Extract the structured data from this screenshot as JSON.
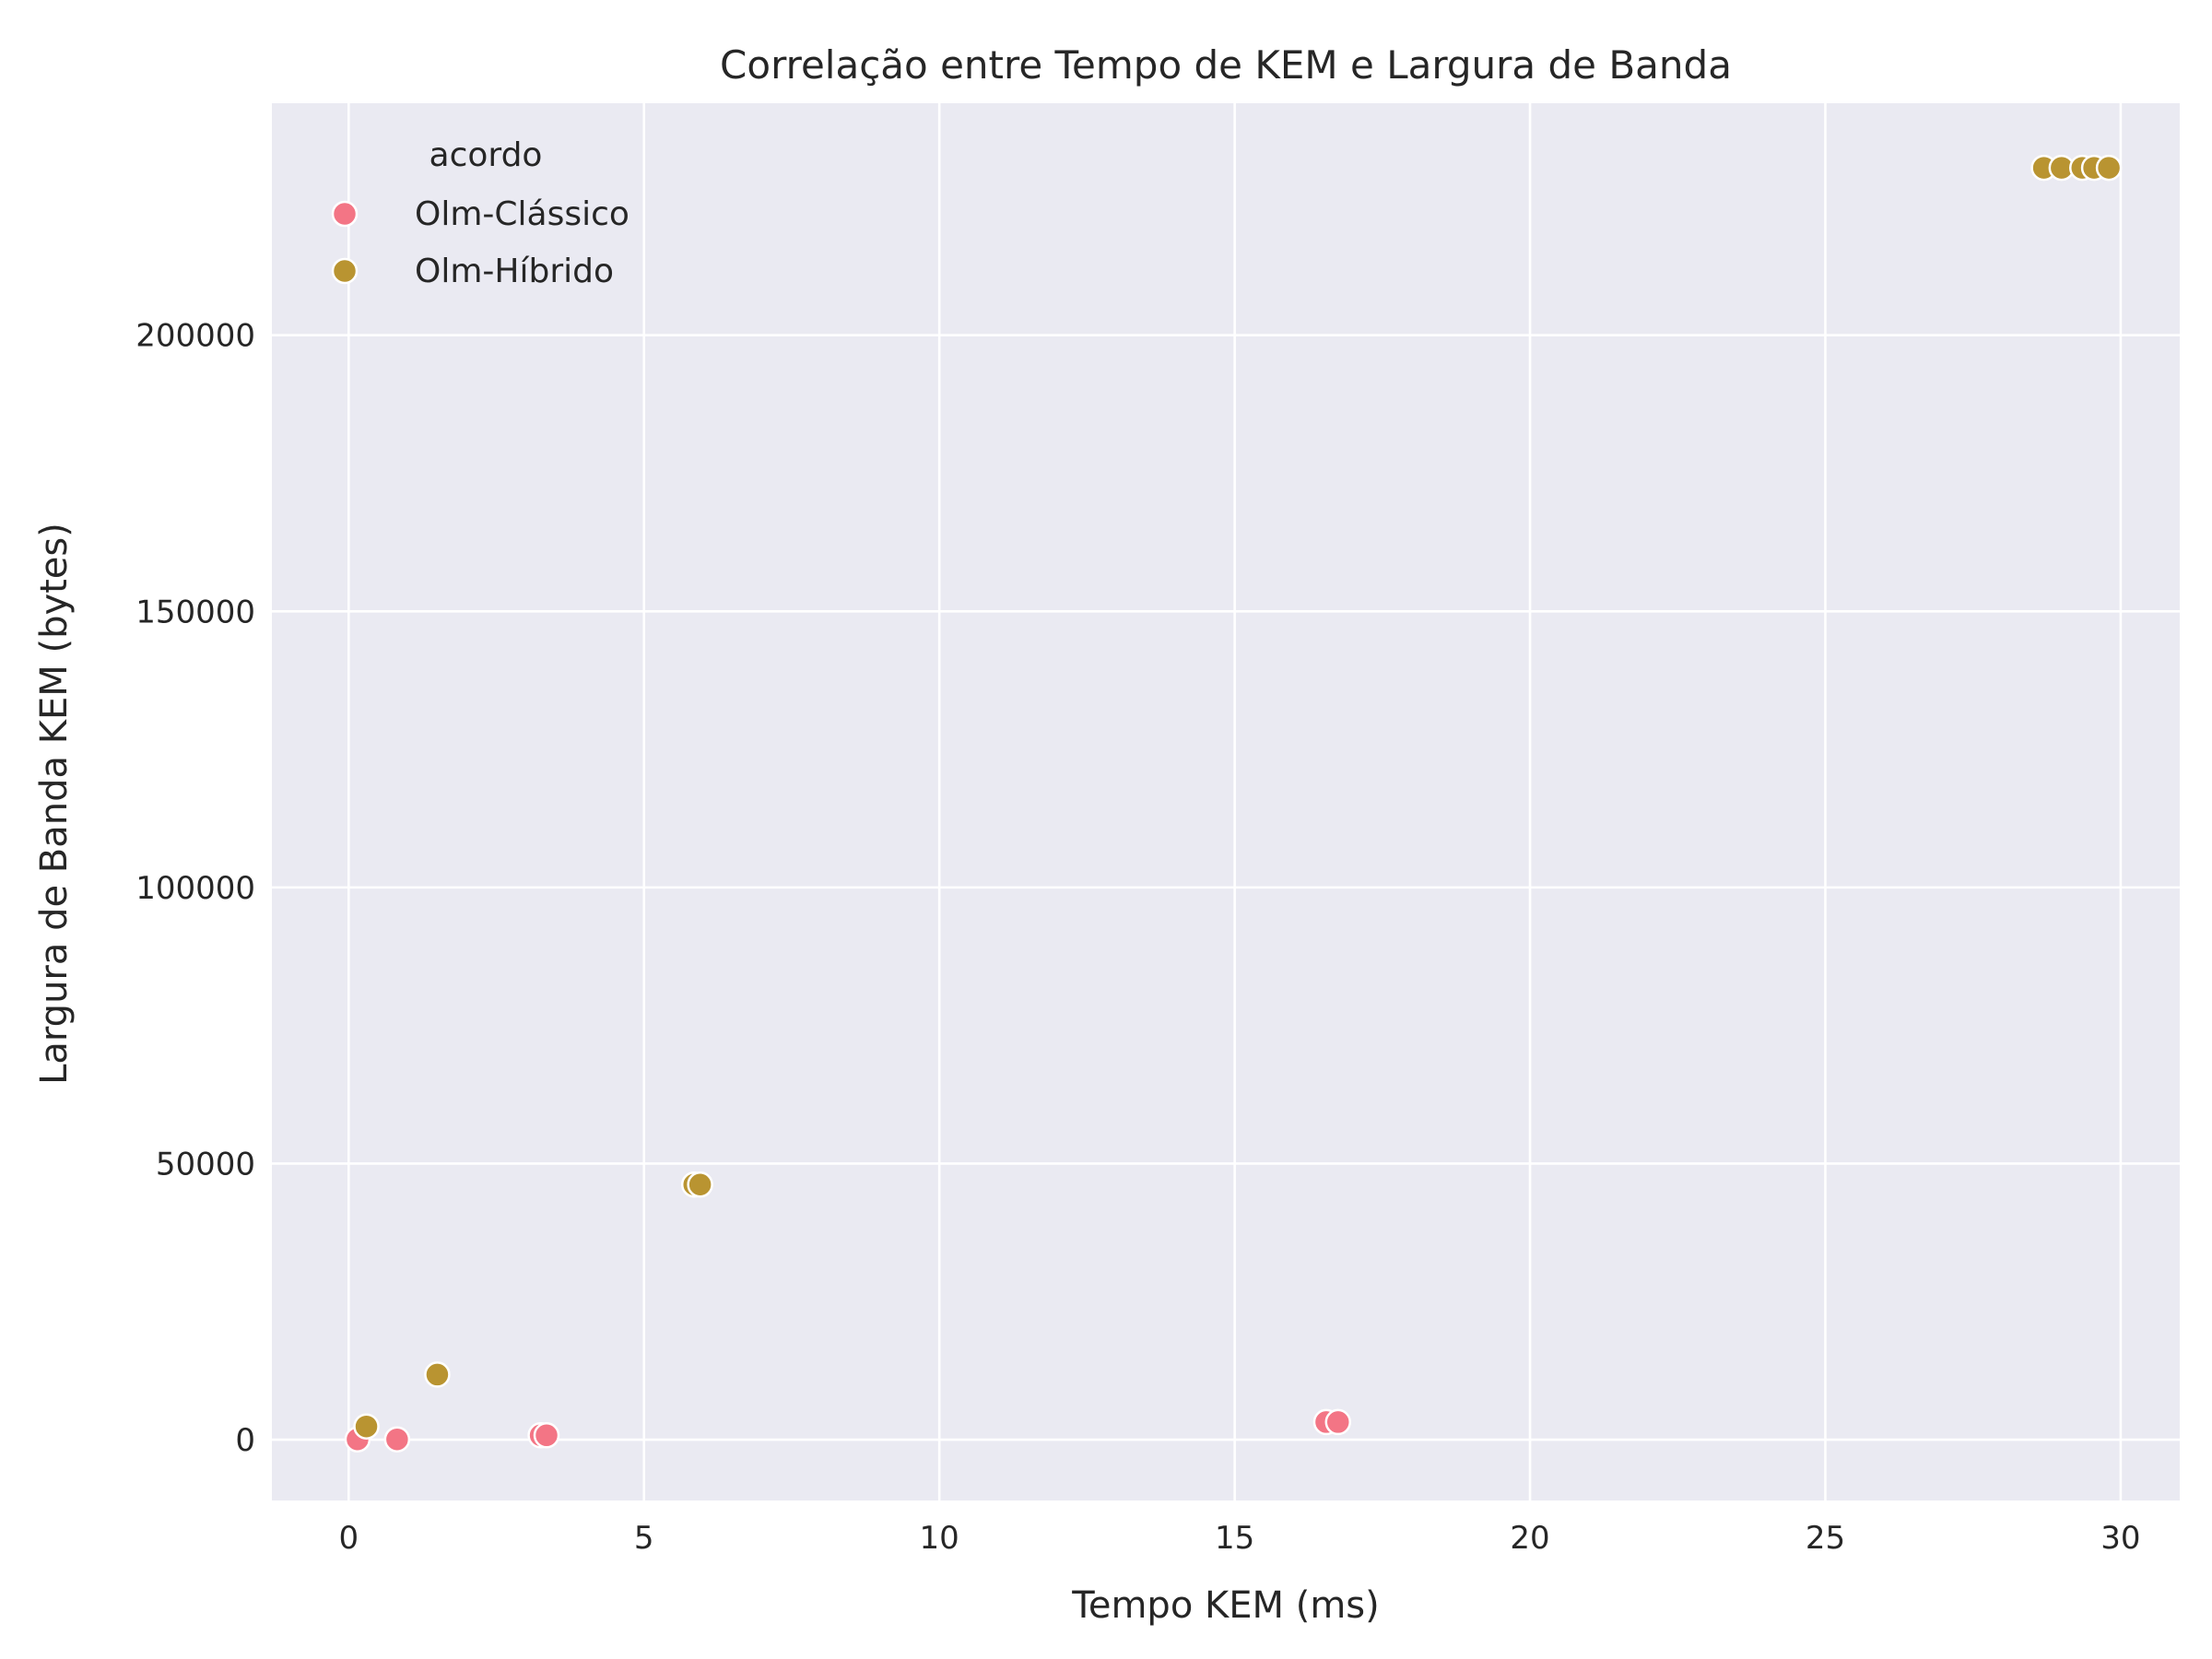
{
  "chart_data": {
    "type": "scatter",
    "title": "Correlação entre Tempo de KEM e Largura de Banda",
    "xlabel": "Tempo KEM (ms)",
    "ylabel": "Largura de Banda KEM (bytes)",
    "xlim": [
      -1.3,
      31.0
    ],
    "ylim": [
      -11000,
      242000
    ],
    "x_ticks": [
      0,
      5,
      10,
      15,
      20,
      25,
      30
    ],
    "y_ticks": [
      0,
      50000,
      100000,
      150000,
      200000
    ],
    "grid": true,
    "legend": {
      "title": "acordo",
      "placement": "top-left"
    },
    "series": [
      {
        "name": "Olm-Clássico",
        "color": "#f37585",
        "points": [
          {
            "x": 0.15,
            "y": 64
          },
          {
            "x": 0.82,
            "y": 64
          },
          {
            "x": 3.25,
            "y": 800
          },
          {
            "x": 3.35,
            "y": 800
          },
          {
            "x": 16.55,
            "y": 3200
          },
          {
            "x": 16.75,
            "y": 3200
          }
        ]
      },
      {
        "name": "Olm-Híbrido",
        "color": "#b99431",
        "points": [
          {
            "x": 0.3,
            "y": 2400
          },
          {
            "x": 1.5,
            "y": 11800
          },
          {
            "x": 5.85,
            "y": 46200
          },
          {
            "x": 5.95,
            "y": 46200
          },
          {
            "x": 28.7,
            "y": 230300
          },
          {
            "x": 29.0,
            "y": 230300
          },
          {
            "x": 29.35,
            "y": 230300
          },
          {
            "x": 29.55,
            "y": 230300
          },
          {
            "x": 29.8,
            "y": 230300
          }
        ]
      }
    ]
  }
}
